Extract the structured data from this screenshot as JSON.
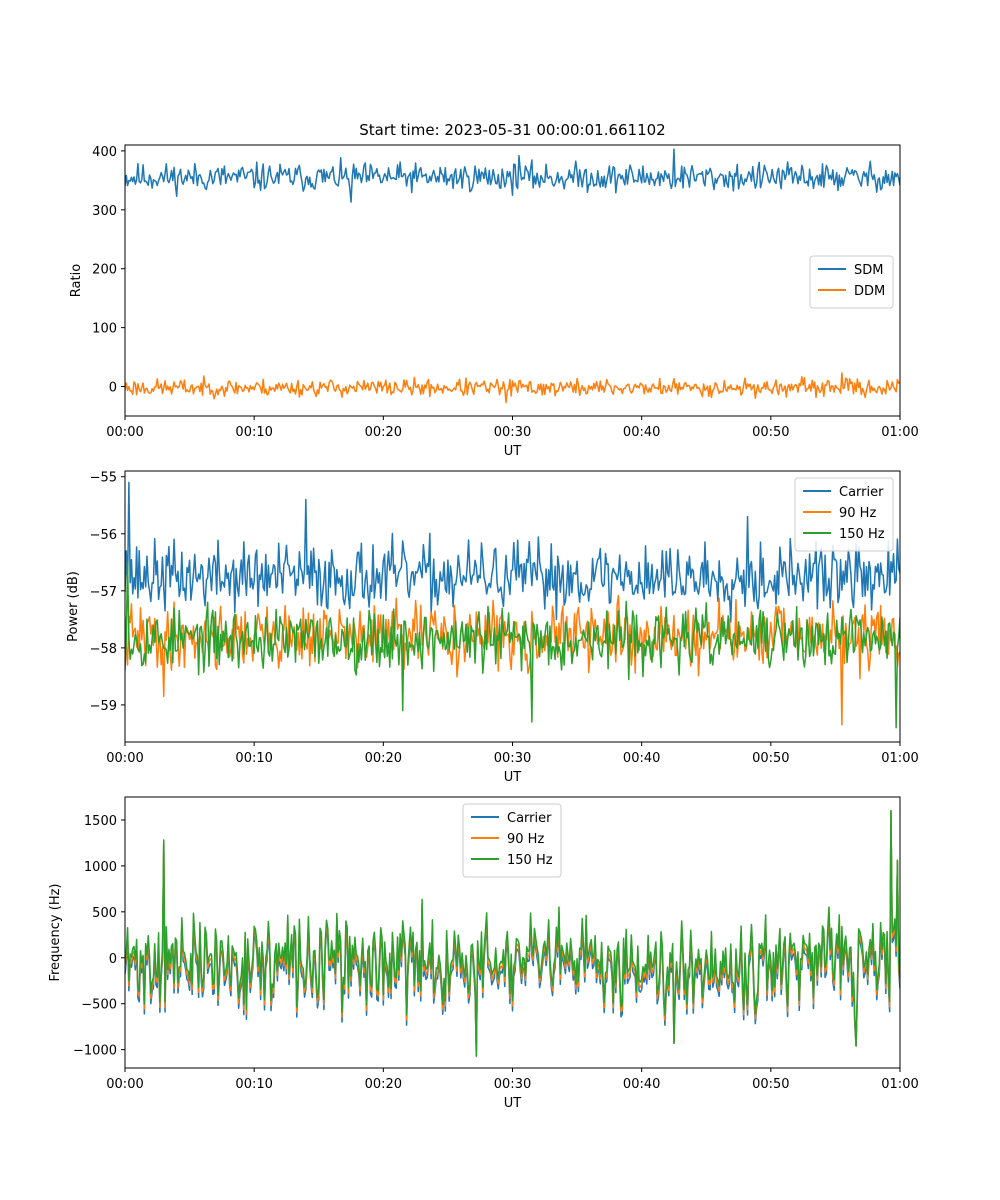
{
  "figure": {
    "title": "Start time: 2023-05-31 00:00:01.661102"
  },
  "chart_data": [
    {
      "type": "line",
      "xlabel": "UT",
      "ylabel": "Ratio",
      "xlim": [
        "00:00",
        "01:00"
      ],
      "xticks": [
        "00:00",
        "00:10",
        "00:20",
        "00:30",
        "00:40",
        "00:50",
        "01:00"
      ],
      "ylim": [
        -50,
        410
      ],
      "yticks": [
        0,
        100,
        200,
        300,
        400
      ],
      "yticklabels": [
        "0",
        "100",
        "200",
        "300",
        "400"
      ],
      "legend_position": "center-right",
      "legend": [
        "SDM",
        "DDM"
      ],
      "grid": false,
      "series": [
        {
          "name": "SDM",
          "color": "#1f77b4",
          "center": 355,
          "amplitude": 18,
          "seed": 11,
          "spikes": [
            [
              42.5,
              403
            ],
            [
              17.5,
              313
            ],
            [
              30.5,
              392
            ]
          ]
        },
        {
          "name": "DDM",
          "color": "#ff7f0e",
          "center": -2,
          "amplitude": 11,
          "seed": 23,
          "spikes": [
            [
              55.5,
              23
            ],
            [
              29.5,
              -27
            ]
          ]
        }
      ]
    },
    {
      "type": "line",
      "xlabel": "UT",
      "ylabel": "Power (dB)",
      "xlim": [
        "00:00",
        "01:00"
      ],
      "xticks": [
        "00:00",
        "00:10",
        "00:20",
        "00:30",
        "00:40",
        "00:50",
        "01:00"
      ],
      "ylim": [
        -59.65,
        -54.9
      ],
      "yticks": [
        -59,
        -58,
        -57,
        -56,
        -55
      ],
      "yticklabels": [
        "−59",
        "−58",
        "−57",
        "−56",
        "−55"
      ],
      "legend_position": "top-right",
      "legend": [
        "Carrier",
        "90 Hz",
        "150 Hz"
      ],
      "grid": false,
      "series": [
        {
          "name": "Carrier",
          "color": "#1f77b4",
          "center": -56.75,
          "amplitude": 0.45,
          "seed": 37,
          "spikes": [
            [
              0.3,
              -55.1
            ],
            [
              14,
              -55.4
            ],
            [
              48.2,
              -55.7
            ],
            [
              0.1,
              -56.3
            ]
          ]
        },
        {
          "name": "90 Hz",
          "color": "#ff7f0e",
          "center": -57.8,
          "amplitude": 0.42,
          "seed": 41,
          "spikes": [
            [
              55.5,
              -59.35
            ],
            [
              3,
              -58.85
            ]
          ]
        },
        {
          "name": "150 Hz",
          "color": "#2ca02c",
          "center": -57.85,
          "amplitude": 0.4,
          "seed": 53,
          "spikes": [
            [
              59.7,
              -59.4
            ],
            [
              31.5,
              -59.3
            ],
            [
              0.2,
              -56.5
            ],
            [
              21.5,
              -59.1
            ]
          ]
        }
      ]
    },
    {
      "type": "line",
      "xlabel": "UT",
      "ylabel": "Frequency (Hz)",
      "xlim": [
        "00:00",
        "01:00"
      ],
      "xticks": [
        "00:00",
        "00:10",
        "00:20",
        "00:30",
        "00:40",
        "00:50",
        "01:00"
      ],
      "ylim": [
        -1200,
        1750
      ],
      "yticks": [
        -1000,
        -500,
        0,
        500,
        1000,
        1500
      ],
      "yticklabels": [
        "−1000",
        "−500",
        "0",
        "500",
        "1000",
        "1500"
      ],
      "legend_position": "upper-center",
      "legend": [
        "Carrier",
        "90 Hz",
        "150 Hz"
      ],
      "grid": false,
      "series": [
        {
          "name": "Carrier",
          "color": "#1f77b4",
          "center": -30,
          "amplitude": 360,
          "seed": 71,
          "offset": -110,
          "spikes": [
            [
              59.3,
              1600
            ],
            [
              3,
              1280
            ],
            [
              27.2,
              -1070
            ],
            [
              42.5,
              -930
            ],
            [
              56.6,
              -960
            ],
            [
              59.8,
              1060
            ]
          ]
        },
        {
          "name": "90 Hz",
          "color": "#ff7f0e",
          "center": -30,
          "amplitude": 360,
          "seed": 71,
          "offset": -55,
          "spikes": [
            [
              59.3,
              1600
            ],
            [
              3,
              1280
            ],
            [
              27.2,
              -1070
            ],
            [
              42.5,
              -930
            ],
            [
              56.6,
              -960
            ],
            [
              59.8,
              1060
            ]
          ]
        },
        {
          "name": "150 Hz",
          "color": "#2ca02c",
          "center": -30,
          "amplitude": 360,
          "seed": 71,
          "offset": 0,
          "spikes": [
            [
              59.3,
              1600
            ],
            [
              3,
              1280
            ],
            [
              27.2,
              -1070
            ],
            [
              42.5,
              -930
            ],
            [
              56.6,
              -960
            ],
            [
              59.8,
              1060
            ]
          ]
        }
      ]
    }
  ]
}
